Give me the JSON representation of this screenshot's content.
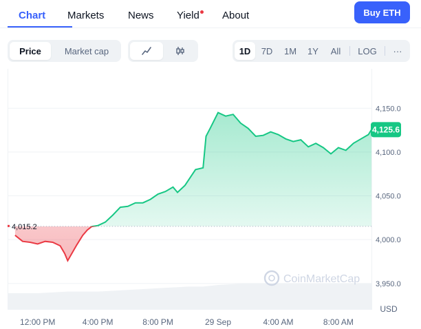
{
  "nav": {
    "tabs": [
      {
        "label": "Chart",
        "active": true
      },
      {
        "label": "Markets"
      },
      {
        "label": "News"
      },
      {
        "label": "Yield",
        "has_notification": true
      },
      {
        "label": "About"
      }
    ],
    "buy_button": "Buy ETH"
  },
  "controls": {
    "metric_toggle": [
      "Price",
      "Market cap"
    ],
    "metric_selected": "Price",
    "chart_type_icons": [
      "line-chart-icon",
      "candlestick-icon"
    ],
    "chart_type_selected": "line",
    "ranges": [
      "1D",
      "7D",
      "1M",
      "1Y",
      "All"
    ],
    "range_selected": "1D",
    "log_label": "LOG",
    "more_label": "···"
  },
  "colors": {
    "accent": "#3861fb",
    "up": "#16c784",
    "down": "#ea3943",
    "notification": "#ea3943"
  },
  "chart_data": {
    "type": "line",
    "baseline": 4015.2,
    "baseline_label": "4,015.2",
    "current_price": 4125.6,
    "current_label": "4,125.6",
    "unit": "USD",
    "watermark": "CoinMarketCap",
    "ylim": [
      3920,
      4195
    ],
    "y_ticks": [
      3950,
      4000,
      4050,
      4100,
      4150
    ],
    "y_tick_labels": [
      "3,950.0",
      "4,000.0",
      "4,050.0",
      "4,100.0",
      "4,150.0"
    ],
    "x_tick_labels": [
      "12:00 PM",
      "4:00 PM",
      "8:00 PM",
      "29 Sep",
      "4:00 AM",
      "8:00 AM"
    ],
    "x_tick_hours": [
      2,
      6,
      10,
      14,
      18,
      22
    ],
    "x_range_hours": [
      0,
      24.2
    ],
    "series": [
      {
        "x": [
          0.5,
          1.0,
          1.5,
          2.0,
          2.5,
          3.0,
          3.5,
          3.8,
          4.0,
          4.3,
          4.6,
          5.0,
          5.3,
          5.6,
          6.0,
          6.5,
          7.0,
          7.5,
          8.0,
          8.5,
          9.0,
          9.5,
          10.0,
          10.5,
          11.0,
          11.3,
          11.8,
          12.5,
          13.0,
          13.2,
          13.5,
          14.0,
          14.5,
          15.0,
          15.5,
          16.0,
          16.5,
          17.0,
          17.5,
          18.0,
          18.5,
          19.0,
          19.5,
          20.0,
          20.5,
          21.0,
          21.5,
          22.0,
          22.5,
          23.0,
          23.5,
          24.0,
          24.2
        ],
        "y": [
          4005,
          3998,
          3997,
          3995,
          3998,
          3997,
          3993,
          3984,
          3976,
          3985,
          3994,
          4005,
          4011,
          4015,
          4016,
          4020,
          4028,
          4037,
          4038,
          4042,
          4042,
          4046,
          4052,
          4055,
          4060,
          4054,
          4062,
          4080,
          4082,
          4118,
          4128,
          4145,
          4141,
          4143,
          4133,
          4127,
          4118,
          4119,
          4123,
          4120,
          4115,
          4112,
          4114,
          4106,
          4110,
          4105,
          4098,
          4105,
          4102,
          4110,
          4115,
          4120,
          4125.6
        ]
      }
    ],
    "volume": {
      "x": [
        0,
        2,
        4,
        6,
        8,
        10,
        12,
        13,
        14,
        16,
        18,
        20,
        22,
        24.2
      ],
      "values": [
        10,
        10,
        11,
        11,
        12,
        13,
        14,
        14,
        15,
        16,
        16,
        16,
        16,
        16
      ]
    }
  }
}
